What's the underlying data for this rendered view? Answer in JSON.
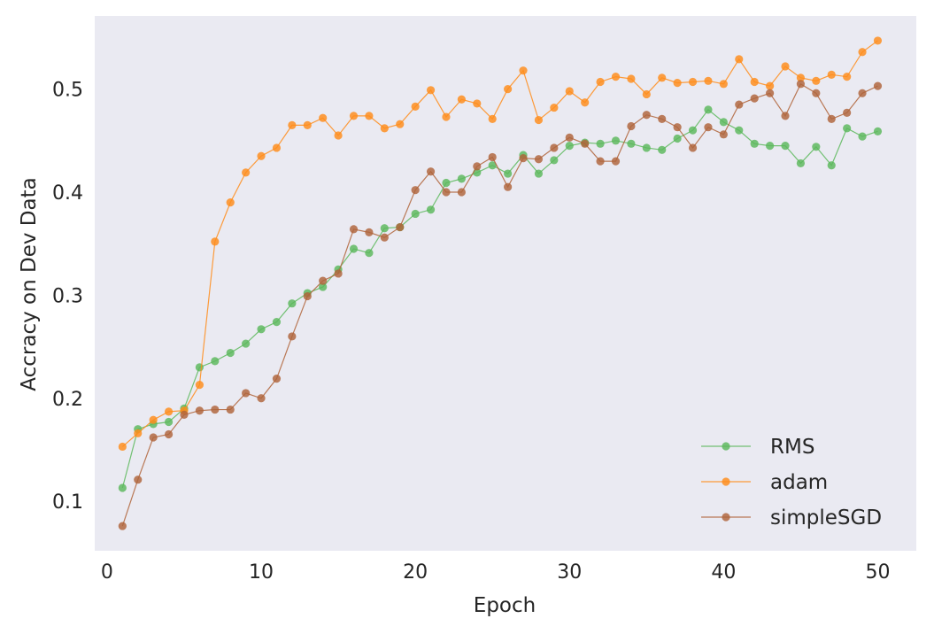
{
  "chart_data": {
    "type": "line",
    "title": "",
    "xlabel": "Epoch",
    "ylabel": "Accracy on Dev Data",
    "xlim": [
      -0.8,
      52.5
    ],
    "ylim": [
      0.052,
      0.571
    ],
    "xticks": [
      0,
      10,
      20,
      30,
      40,
      50
    ],
    "yticks": [
      0.1,
      0.2,
      0.3,
      0.4,
      0.5
    ],
    "grid": false,
    "legend_position": "lower-right",
    "x": [
      1,
      2,
      3,
      4,
      5,
      6,
      7,
      8,
      9,
      10,
      11,
      12,
      13,
      14,
      15,
      16,
      17,
      18,
      19,
      20,
      21,
      22,
      23,
      24,
      25,
      26,
      27,
      28,
      29,
      30,
      31,
      32,
      33,
      34,
      35,
      36,
      37,
      38,
      39,
      40,
      41,
      42,
      43,
      44,
      45,
      46,
      47,
      48,
      49,
      50
    ],
    "series": [
      {
        "name": "RMS",
        "color": "#5cb85c",
        "values": [
          0.113,
          0.17,
          0.175,
          0.177,
          0.19,
          0.23,
          0.236,
          0.244,
          0.253,
          0.267,
          0.274,
          0.292,
          0.302,
          0.308,
          0.325,
          0.345,
          0.341,
          0.365,
          0.366,
          0.379,
          0.383,
          0.409,
          0.413,
          0.419,
          0.426,
          0.418,
          0.436,
          0.418,
          0.431,
          0.445,
          0.448,
          0.447,
          0.45,
          0.447,
          0.443,
          0.441,
          0.452,
          0.46,
          0.48,
          0.468,
          0.46,
          0.447,
          0.445,
          0.445,
          0.428,
          0.444,
          0.426,
          0.462,
          0.454,
          0.459
        ]
      },
      {
        "name": "adam",
        "color": "#ff8c1a",
        "values": [
          0.153,
          0.166,
          0.179,
          0.187,
          0.188,
          0.213,
          0.352,
          0.39,
          0.419,
          0.435,
          0.443,
          0.465,
          0.465,
          0.472,
          0.455,
          0.474,
          0.474,
          0.462,
          0.466,
          0.483,
          0.499,
          0.473,
          0.49,
          0.486,
          0.471,
          0.5,
          0.518,
          0.47,
          0.482,
          0.498,
          0.487,
          0.507,
          0.512,
          0.51,
          0.495,
          0.511,
          0.506,
          0.507,
          0.508,
          0.505,
          0.529,
          0.507,
          0.503,
          0.522,
          0.511,
          0.508,
          0.514,
          0.512,
          0.536,
          0.547
        ]
      },
      {
        "name": "simpleSGD",
        "color": "#b0643a",
        "values": [
          0.076,
          0.121,
          0.162,
          0.165,
          0.184,
          0.188,
          0.189,
          0.189,
          0.205,
          0.2,
          0.219,
          0.26,
          0.299,
          0.314,
          0.321,
          0.364,
          0.361,
          0.356,
          0.366,
          0.402,
          0.42,
          0.4,
          0.4,
          0.425,
          0.434,
          0.405,
          0.433,
          0.432,
          0.443,
          0.453,
          0.447,
          0.43,
          0.43,
          0.464,
          0.475,
          0.471,
          0.463,
          0.443,
          0.463,
          0.456,
          0.485,
          0.491,
          0.496,
          0.474,
          0.505,
          0.496,
          0.471,
          0.477,
          0.496,
          0.503
        ]
      }
    ]
  }
}
